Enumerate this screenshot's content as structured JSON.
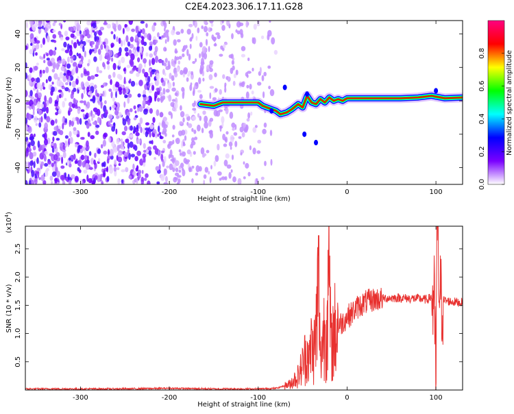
{
  "title": "C2E4.2023.306.17.11.G28",
  "chart_data": [
    {
      "type": "heatmap",
      "xlabel": "Height of straight line (km)",
      "ylabel": "Frequency (Hz)",
      "xlim": [
        -362,
        130
      ],
      "ylim": [
        -50,
        48
      ],
      "xticks": [
        -300,
        -200,
        -100,
        0,
        100
      ],
      "yticks": [
        -40,
        -20,
        0,
        20,
        40
      ],
      "colorbar": {
        "label": "Normalized spectral amplitude",
        "range": [
          0.0,
          1.0
        ],
        "ticks": [
          0.0,
          0.2,
          0.4,
          0.6,
          0.8
        ],
        "colors": [
          "#ffffff",
          "#7a00ff",
          "#0000ff",
          "#00ffff",
          "#00ff00",
          "#ffff00",
          "#ff0000",
          "#ff0080"
        ]
      },
      "noise_region_km": [
        -362,
        -80
      ],
      "signal_track": {
        "x": [
          -165,
          -150,
          -140,
          -125,
          -110,
          -100,
          -95,
          -85,
          -80,
          -75,
          -68,
          -62,
          -55,
          -50,
          -45,
          -40,
          -35,
          -30,
          -25,
          -20,
          -15,
          -10,
          -5,
          0,
          20,
          40,
          60,
          80,
          95,
          100,
          110,
          130
        ],
        "y": [
          -2,
          -3,
          -1,
          -1,
          -1,
          -1,
          -3,
          -5,
          -6,
          -8,
          -7,
          -5,
          -2,
          -4,
          3,
          -1,
          -2,
          1,
          -1,
          2,
          0,
          1,
          0,
          1.5,
          1.5,
          1.5,
          1.5,
          2,
          3,
          2.5,
          1.5,
          2
        ]
      }
    },
    {
      "type": "line",
      "xlabel": "Height of straight line (km)",
      "ylabel": "SNR (10 * v/v)",
      "scale_label": "(x10",
      "scale_exponent": "4",
      "xlim": [
        -362,
        130
      ],
      "ylim": [
        0,
        2.9
      ],
      "xticks": [
        -300,
        -200,
        -100,
        0,
        100
      ],
      "yticks": [
        0.5,
        1.0,
        1.5,
        2.0,
        2.5
      ],
      "ytick_labels": [
        "0.5",
        "1.0",
        "1.5",
        "2.0",
        "2.5"
      ],
      "color": "#e8312f",
      "x": [
        -362,
        -300,
        -250,
        -200,
        -150,
        -100,
        -80,
        -65,
        -55,
        -50,
        -45,
        -42,
        -40,
        -38,
        -35,
        -32,
        -30,
        -28,
        -25,
        -22,
        -20,
        -18,
        -15,
        -10,
        -5,
        0,
        5,
        10,
        20,
        30,
        40,
        50,
        60,
        70,
        80,
        90,
        95,
        98,
        100,
        101,
        103,
        105,
        110,
        120,
        130
      ],
      "y": [
        0.02,
        0.02,
        0.02,
        0.03,
        0.02,
        0.02,
        0.03,
        0.1,
        0.25,
        0.45,
        0.7,
        0.5,
        0.9,
        0.6,
        1.0,
        1.93,
        0.5,
        0.85,
        1.1,
        1.4,
        1.95,
        0.7,
        1.0,
        1.15,
        1.2,
        1.3,
        1.35,
        1.45,
        1.55,
        1.6,
        1.62,
        1.63,
        1.63,
        1.62,
        1.62,
        1.6,
        1.65,
        1.55,
        0.1,
        2.9,
        2.0,
        1.6,
        1.58,
        1.56,
        1.55
      ]
    }
  ]
}
